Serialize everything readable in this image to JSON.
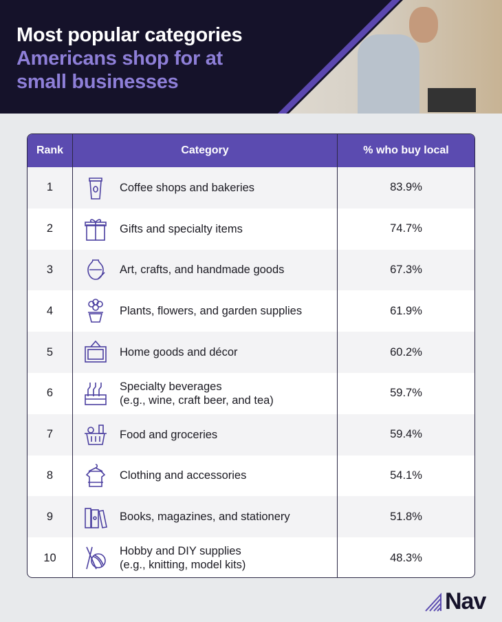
{
  "header": {
    "title_line1": "Most popular categories",
    "title_line2": "Americans shop for at",
    "title_line3": "small businesses"
  },
  "table": {
    "columns": [
      "Rank",
      "Category",
      "% who buy local"
    ],
    "rows": [
      {
        "rank": "1",
        "icon": "coffee-cup-icon",
        "category": "Coffee shops and bakeries",
        "category2": "",
        "pct": "83.9%"
      },
      {
        "rank": "2",
        "icon": "gift-icon",
        "category": "Gifts and specialty items",
        "category2": "",
        "pct": "74.7%"
      },
      {
        "rank": "3",
        "icon": "vase-icon",
        "category": "Art, crafts, and handmade goods",
        "category2": "",
        "pct": "67.3%"
      },
      {
        "rank": "4",
        "icon": "flower-pot-icon",
        "category": "Plants, flowers, and garden supplies",
        "category2": "",
        "pct": "61.9%"
      },
      {
        "rank": "5",
        "icon": "picture-frame-icon",
        "category": "Home goods and décor",
        "category2": "",
        "pct": "60.2%"
      },
      {
        "rank": "6",
        "icon": "bottle-crate-icon",
        "category": "Specialty beverages",
        "category2": "(e.g., wine, craft beer, and tea)",
        "pct": "59.7%"
      },
      {
        "rank": "7",
        "icon": "grocery-basket-icon",
        "category": "Food and groceries",
        "category2": "",
        "pct": "59.4%"
      },
      {
        "rank": "8",
        "icon": "shirt-hanger-icon",
        "category": "Clothing and accessories",
        "category2": "",
        "pct": "54.1%"
      },
      {
        "rank": "9",
        "icon": "books-icon",
        "category": "Books, magazines, and stationery",
        "category2": "",
        "pct": "51.8%"
      },
      {
        "rank": "10",
        "icon": "yarn-needles-icon",
        "category": "Hobby and DIY supplies",
        "category2": "(e.g., knitting, model kits)",
        "pct": "48.3%"
      }
    ]
  },
  "brand": {
    "logo": "Nav",
    "accent": "#5b4bb0"
  }
}
